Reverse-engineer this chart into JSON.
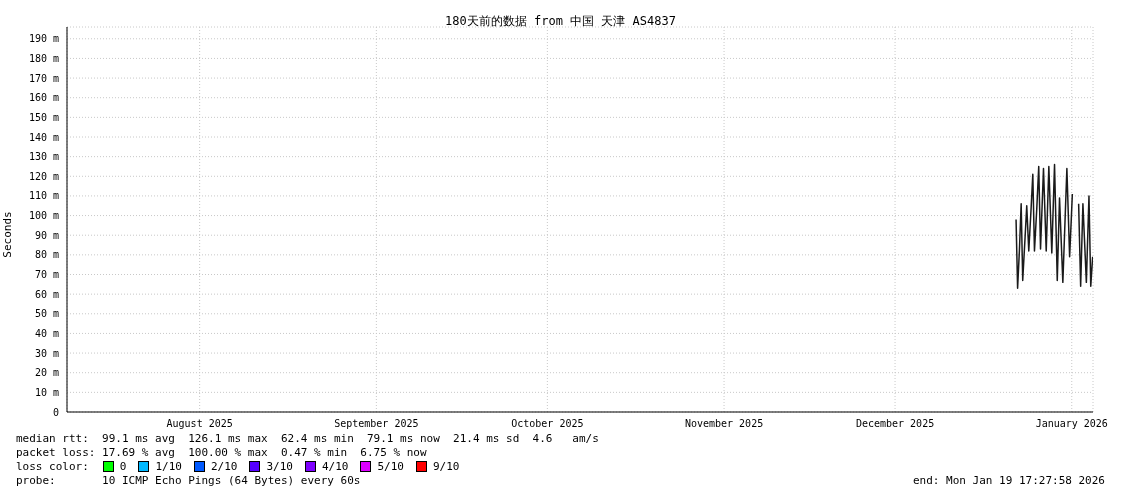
{
  "chart_data": {
    "type": "line",
    "title": "180天前的数据 from 中国 天津 AS4837",
    "ylabel": "Seconds",
    "x": [
      "2026-01-06T05:30",
      "2026-01-06T12:00",
      "2026-01-06T19:30",
      "2026-01-07T03:00",
      "2026-01-07T09:30",
      "2026-01-07T19:30",
      "2026-01-08T02:30",
      "2026-01-08T11:00",
      "2026-01-08T21:00",
      "2026-01-09T04:00",
      "2026-01-09T11:00",
      "2026-01-09T20:30",
      "2026-01-10T05:00",
      "2026-01-10T12:30",
      "2026-01-11T01:00",
      "2026-01-11T12:30",
      "2026-01-11T23:30",
      "2026-01-12T12:00",
      "2026-01-12T23:30",
      "2026-01-13T11:00",
      "2026-01-13T20:30",
      "2026-01-14T10:30",
      "2026-01-14T20:30",
      "2026-01-15T03:30",
      "2026-01-15T15:00",
      "2026-01-15T22:00",
      "2026-01-16T02:30",
      "2026-01-16T12:00",
      "2026-01-17T05:00",
      "2026-01-17T13:30",
      "2026-01-17T23:00",
      "2026-01-18T13:30",
      "2026-01-19T00:30",
      "2026-01-19T08:00",
      "2026-01-19T16:00"
    ],
    "series": [
      {
        "color": "#1a1a1a",
        "values": [
          98,
          63,
          82,
          106,
          67,
          89,
          105,
          82,
          104,
          121,
          82,
          103,
          125,
          83,
          124,
          82,
          125,
          81,
          126,
          67,
          109,
          66,
          100,
          124,
          79,
          98,
          111,
          null,
          106,
          64,
          106,
          66,
          110,
          64,
          79
        ]
      }
    ],
    "xlim": [
      "2025-07-23T17:28",
      "2026-01-19T17:28"
    ],
    "xticks": [
      {
        "value": "2025-08-16",
        "label": "August 2025"
      },
      {
        "value": "2025-09-16",
        "label": "September 2025"
      },
      {
        "value": "2025-10-16",
        "label": "October 2025"
      },
      {
        "value": "2025-11-16",
        "label": "November 2025"
      },
      {
        "value": "2025-12-16",
        "label": "December 2025"
      },
      {
        "value": "2026-01-16",
        "label": "January 2026"
      }
    ],
    "ylim": [
      0,
      196
    ],
    "yticks": [
      0,
      {
        "value": 10,
        "label": "10 m"
      },
      {
        "value": 20,
        "label": "20 m"
      },
      {
        "value": 30,
        "label": "30 m"
      },
      {
        "value": 40,
        "label": "40 m"
      },
      {
        "value": 50,
        "label": "50 m"
      },
      {
        "value": 60,
        "label": "60 m"
      },
      {
        "value": 70,
        "label": "70 m"
      },
      {
        "value": 80,
        "label": "80 m"
      },
      {
        "value": 90,
        "label": "90 m"
      },
      {
        "value": 100,
        "label": "100 m"
      },
      {
        "value": 110,
        "label": "110 m"
      },
      {
        "value": 120,
        "label": "120 m"
      },
      {
        "value": 130,
        "label": "130 m"
      },
      {
        "value": 140,
        "label": "140 m"
      },
      {
        "value": 150,
        "label": "150 m"
      },
      {
        "value": 160,
        "label": "160 m"
      },
      {
        "value": 170,
        "label": "170 m"
      },
      {
        "value": 180,
        "label": "180 m"
      },
      {
        "value": 190,
        "label": "190 m"
      }
    ],
    "grid": true,
    "marker": "none",
    "line_style": "solid",
    "annotations": [
      "median rtt:  99.1 ms avg  126.1 ms max  62.4 ms min  79.1 ms now  21.4 ms sd  4.6   am/s",
      "packet loss: 17.69 % avg  100.00 % max  0.47 % min  6.75 % now",
      "loss color:",
      "0",
      "1/10",
      "2/10",
      "3/10",
      "4/10",
      "5/10",
      "9/10",
      "probe:       10 ICMP Echo Pings (64 Bytes) every 60s",
      "end: Mon Jan 19 17:27:58 2026"
    ]
  }
}
